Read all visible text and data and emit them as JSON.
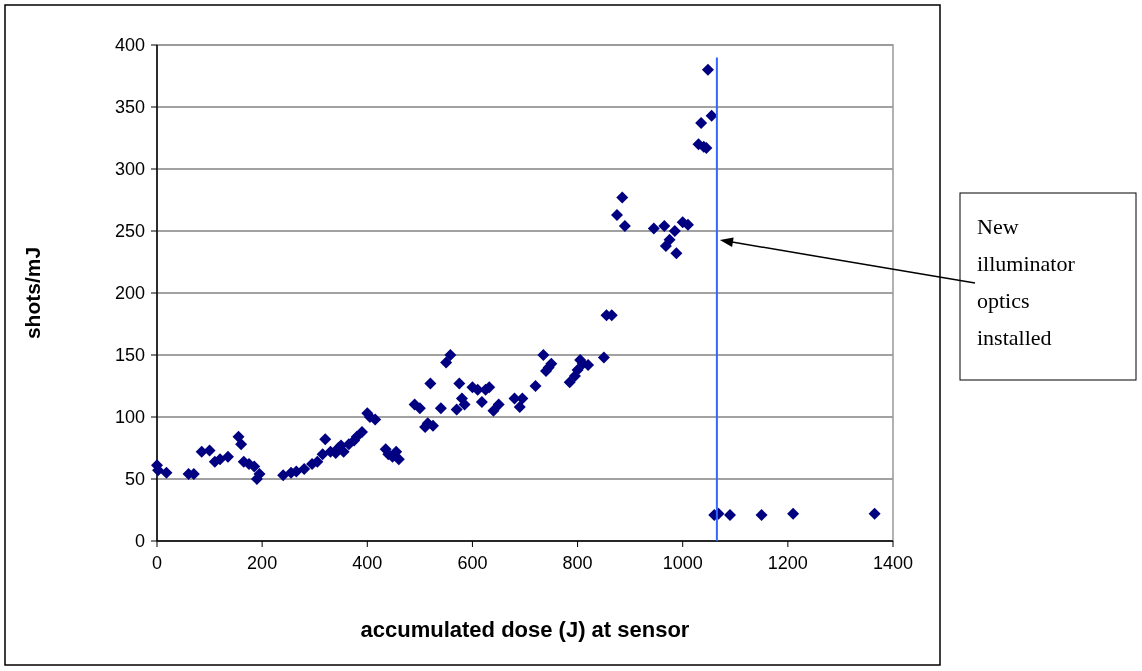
{
  "chart_data": {
    "type": "scatter",
    "xlabel": "accumulated dose (J) at sensor",
    "ylabel": "shots/mJ",
    "xlim": [
      0,
      1400
    ],
    "xticks": [
      0,
      200,
      400,
      600,
      800,
      1000,
      1200,
      1400
    ],
    "ylim": [
      0,
      400
    ],
    "yticks": [
      0,
      50,
      100,
      150,
      200,
      250,
      300,
      350,
      400
    ],
    "grid": "y",
    "marker": "diamond",
    "series": [
      {
        "color": "#000080",
        "x": [
          0,
          2,
          18,
          60,
          70,
          85,
          100,
          110,
          120,
          135,
          155,
          160,
          165,
          175,
          185,
          190,
          195,
          240,
          255,
          265,
          280,
          295,
          305,
          315,
          320,
          330,
          340,
          345,
          350,
          355,
          365,
          375,
          380,
          390,
          400,
          405,
          415,
          435,
          440,
          448,
          455,
          460,
          490,
          500,
          510,
          515,
          520,
          525,
          540,
          550,
          558,
          570,
          575,
          580,
          585,
          600,
          610,
          618,
          625,
          632,
          640,
          650,
          680,
          690,
          695,
          720,
          735,
          740,
          745,
          750,
          785,
          795,
          800,
          805,
          810,
          820,
          850,
          855,
          865,
          875,
          885,
          890,
          945,
          965,
          968,
          975,
          985,
          988,
          1000,
          1010,
          1030,
          1035,
          1040,
          1045,
          1048,
          1055,
          1060,
          1068,
          1090,
          1150,
          1210,
          1365
        ],
        "values": [
          61,
          57,
          55,
          54,
          54,
          72,
          73,
          64,
          66,
          68,
          84,
          78,
          64,
          62,
          60,
          50,
          54,
          53,
          55,
          56,
          58,
          62,
          64,
          70,
          82,
          72,
          71,
          75,
          77,
          72,
          78,
          81,
          84,
          88,
          103,
          100,
          98,
          74,
          70,
          68,
          72,
          66,
          110,
          107,
          92,
          95,
          127,
          93,
          107,
          144,
          150,
          106,
          127,
          115,
          110,
          124,
          122,
          112,
          122,
          124,
          105,
          110,
          115,
          108,
          115,
          125,
          150,
          137,
          140,
          143,
          128,
          133,
          138,
          146,
          143,
          142,
          148,
          182,
          182,
          263,
          277,
          254,
          252,
          254,
          238,
          243,
          250,
          232,
          257,
          255,
          320,
          337,
          318,
          317,
          380,
          343,
          21,
          22,
          21,
          21,
          22,
          22
        ]
      }
    ],
    "ref_lines": [
      {
        "axis": "x",
        "value": 1065,
        "color": "#3366ff"
      }
    ],
    "annotations": [
      "New illuminator optics installed"
    ]
  }
}
